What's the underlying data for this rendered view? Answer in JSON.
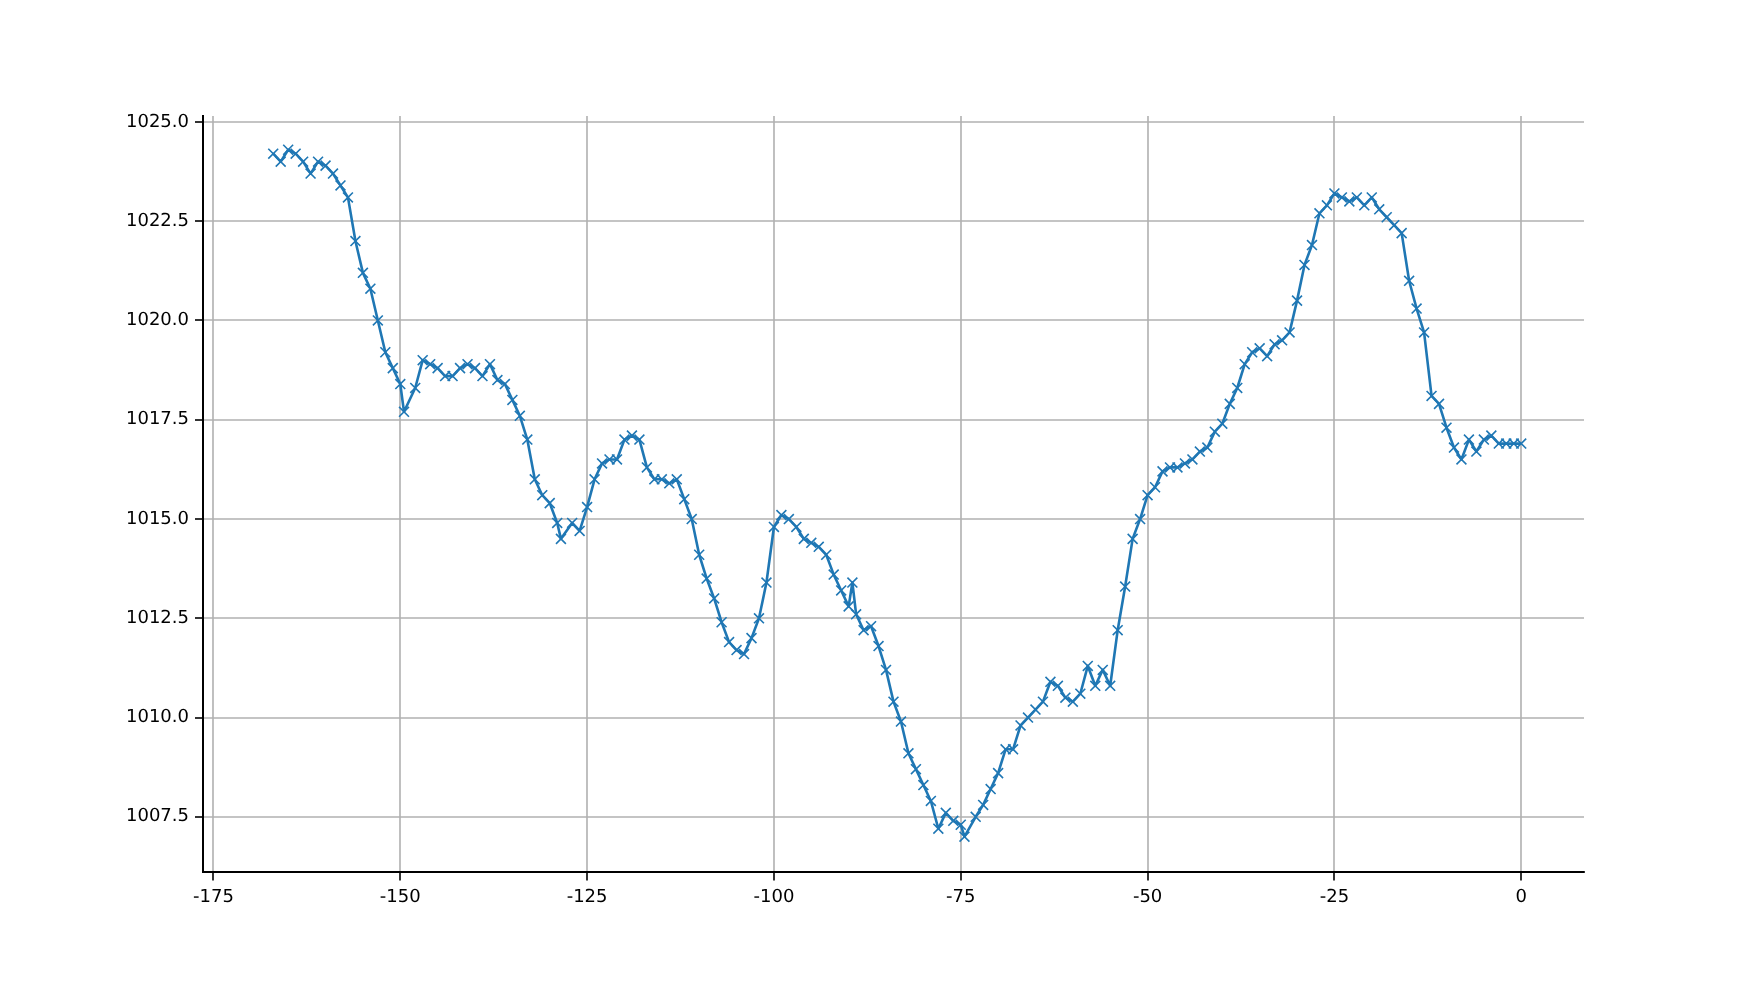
{
  "chart_data": {
    "type": "line",
    "marker": "cross",
    "line_style": "solid",
    "grid": true,
    "legend": false,
    "x": [
      -167,
      -166,
      -165,
      -164,
      -163,
      -162,
      -161,
      -160,
      -159,
      -158,
      -157,
      -156,
      -155,
      -154,
      -153,
      -152,
      -151,
      -150,
      -149.5,
      -148,
      -147,
      -146,
      -145,
      -144,
      -143,
      -142,
      -141,
      -140,
      -139,
      -138,
      -137,
      -136,
      -135,
      -134,
      -133,
      -132,
      -131,
      -130,
      -129,
      -128.5,
      -127,
      -126,
      -125,
      -124,
      -123,
      -122,
      -121,
      -120,
      -119,
      -118,
      -117,
      -116,
      -115,
      -114,
      -113,
      -112,
      -111,
      -110,
      -109,
      -108,
      -107,
      -106,
      -105,
      -104,
      -103,
      -102,
      -101,
      -100,
      -99,
      -98,
      -97,
      -96,
      -95,
      -94,
      -93,
      -92,
      -91,
      -90,
      -89.5,
      -89,
      -88,
      -87,
      -86,
      -85,
      -84,
      -83,
      -82,
      -81,
      -80,
      -79,
      -78,
      -77,
      -76,
      -75,
      -74.5,
      -73,
      -72,
      -71,
      -70,
      -69,
      -68,
      -67,
      -66,
      -65,
      -64,
      -63,
      -62,
      -61,
      -60,
      -59,
      -58,
      -57,
      -56,
      -55,
      -54,
      -53,
      -52,
      -51,
      -50,
      -49,
      -48,
      -47,
      -46,
      -45,
      -44,
      -43,
      -42,
      -41,
      -40,
      -39,
      -38,
      -37,
      -36,
      -35,
      -34,
      -33,
      -32,
      -31,
      -30,
      -29,
      -28,
      -27,
      -26,
      -25,
      -24,
      -23,
      -22,
      -21,
      -20,
      -19,
      -18,
      -17,
      -16,
      -15,
      -14,
      -13,
      -12,
      -11,
      -10,
      -9,
      -8,
      -7,
      -6,
      -5,
      -4,
      -3,
      -2,
      -1,
      0
    ],
    "series": [
      {
        "color": "#1f77b4",
        "values": [
          1024.2,
          1024.0,
          1024.3,
          1024.2,
          1024.0,
          1023.7,
          1024.0,
          1023.9,
          1023.7,
          1023.4,
          1023.1,
          1022.0,
          1021.2,
          1020.8,
          1020.0,
          1019.2,
          1018.8,
          1018.4,
          1017.7,
          1018.3,
          1019.0,
          1018.9,
          1018.8,
          1018.6,
          1018.6,
          1018.8,
          1018.9,
          1018.8,
          1018.6,
          1018.9,
          1018.5,
          1018.4,
          1018.0,
          1017.6,
          1017.0,
          1016.0,
          1015.6,
          1015.4,
          1014.9,
          1014.5,
          1014.9,
          1014.7,
          1015.3,
          1016.0,
          1016.4,
          1016.5,
          1016.5,
          1017.0,
          1017.1,
          1017.0,
          1016.3,
          1016.0,
          1016.0,
          1015.9,
          1016.0,
          1015.5,
          1015.0,
          1014.1,
          1013.5,
          1013.0,
          1012.4,
          1011.9,
          1011.7,
          1011.6,
          1012.0,
          1012.5,
          1013.4,
          1014.8,
          1015.1,
          1015.0,
          1014.8,
          1014.5,
          1014.4,
          1014.3,
          1014.1,
          1013.6,
          1013.2,
          1012.8,
          1013.4,
          1012.6,
          1012.2,
          1012.3,
          1011.8,
          1011.2,
          1010.4,
          1009.9,
          1009.1,
          1008.7,
          1008.3,
          1007.9,
          1007.2,
          1007.6,
          1007.4,
          1007.3,
          1007.0,
          1007.5,
          1007.8,
          1008.2,
          1008.6,
          1009.2,
          1009.2,
          1009.8,
          1010.0,
          1010.2,
          1010.4,
          1010.9,
          1010.8,
          1010.5,
          1010.4,
          1010.6,
          1011.3,
          1010.8,
          1011.2,
          1010.8,
          1012.2,
          1013.3,
          1014.5,
          1015.0,
          1015.6,
          1015.8,
          1016.2,
          1016.3,
          1016.3,
          1016.4,
          1016.5,
          1016.7,
          1016.8,
          1017.2,
          1017.4,
          1017.9,
          1018.3,
          1018.9,
          1019.2,
          1019.3,
          1019.1,
          1019.4,
          1019.5,
          1019.7,
          1020.5,
          1021.4,
          1021.9,
          1022.7,
          1022.9,
          1023.2,
          1023.1,
          1023.0,
          1023.1,
          1022.9,
          1023.1,
          1022.8,
          1022.6,
          1022.4,
          1022.2,
          1021.0,
          1020.3,
          1019.7,
          1018.1,
          1017.9,
          1017.3,
          1016.8,
          1016.5,
          1017.0,
          1016.7,
          1017.0,
          1017.1,
          1016.9,
          1016.9,
          1016.9,
          1016.9
        ]
      }
    ],
    "xlim": [
      -176.4,
      8.4
    ],
    "xticks": [
      -175,
      -150,
      -125,
      -100,
      -75,
      -50,
      -25,
      0
    ],
    "ylim": [
      1006.1,
      1025.15
    ],
    "yticks": [
      {
        "value": 1007.5,
        "label": "1007.5"
      },
      {
        "value": 1010,
        "label": "1010.0"
      },
      {
        "value": 1012.5,
        "label": "1012.5"
      },
      {
        "value": 1015,
        "label": "1015.0"
      },
      {
        "value": 1017.5,
        "label": "1017.5"
      },
      {
        "value": 1020,
        "label": "1020.0"
      },
      {
        "value": 1022.5,
        "label": "1022.5"
      },
      {
        "value": 1025,
        "label": "1025.0"
      }
    ]
  }
}
